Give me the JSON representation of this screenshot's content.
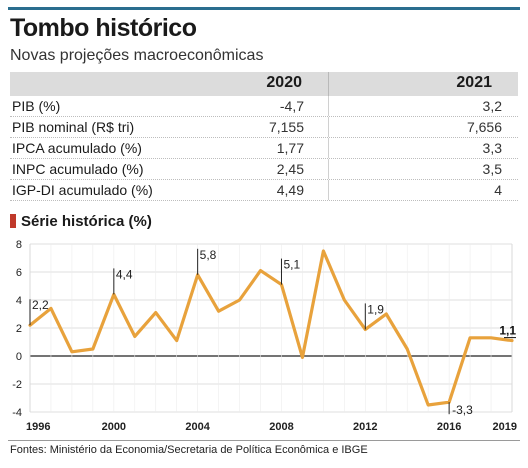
{
  "header": {
    "title": "Tombo histórico",
    "subtitle": "Novas projeções macroeconômicas"
  },
  "table": {
    "columns": [
      "2020",
      "2021"
    ],
    "rows": [
      {
        "label": "PIB (%)",
        "v2020": "-4,7",
        "v2021": "3,2"
      },
      {
        "label": "PIB nominal (R$ tri)",
        "v2020": "7,155",
        "v2021": "7,656"
      },
      {
        "label": "IPCA acumulado (%)",
        "v2020": "1,77",
        "v2021": "3,3"
      },
      {
        "label": "INPC acumulado (%)",
        "v2020": "2,45",
        "v2021": "3,5"
      },
      {
        "label": "IGP-DI acumulado (%)",
        "v2020": "4,49",
        "v2021": "4"
      }
    ]
  },
  "section_title": "Série histórica (%)",
  "source": "Fontes: Ministério da Economia/Secretaria de Política Econômica e IBGE",
  "colors": {
    "line": "#e8a23c",
    "accent": "#2a6e8f",
    "marker": "#c0392b"
  },
  "chart_data": {
    "type": "line",
    "title": "Série histórica (%)",
    "x": [
      1996,
      1997,
      1998,
      1999,
      2000,
      2001,
      2002,
      2003,
      2004,
      2005,
      2006,
      2007,
      2008,
      2009,
      2010,
      2011,
      2012,
      2013,
      2014,
      2015,
      2016,
      2017,
      2018,
      2019
    ],
    "series": [
      {
        "values": [
          2.2,
          3.4,
          0.3,
          0.5,
          4.4,
          1.4,
          3.1,
          1.1,
          5.8,
          3.2,
          4.0,
          6.1,
          5.1,
          -0.1,
          7.5,
          4.0,
          1.9,
          3.0,
          0.5,
          -3.5,
          -3.3,
          1.3,
          1.3,
          1.1
        ]
      }
    ],
    "x_ticks": [
      "1996",
      "2000",
      "2004",
      "2008",
      "2012",
      "2016",
      "2019"
    ],
    "y_ticks": [
      "8",
      "6",
      "4",
      "2",
      "0",
      "-2",
      "-4"
    ],
    "ylim": [
      -4,
      8
    ],
    "xlim": [
      1996,
      2019
    ],
    "annotations": [
      {
        "year": 1996,
        "label": "2,2"
      },
      {
        "year": 2000,
        "label": "4,4"
      },
      {
        "year": 2004,
        "label": "5,8"
      },
      {
        "year": 2008,
        "label": "5,1"
      },
      {
        "year": 2012,
        "label": "1,9"
      },
      {
        "year": 2016,
        "label": "-3,3"
      },
      {
        "year": 2019,
        "label": "1,1"
      }
    ],
    "grid": true,
    "legend": "none"
  }
}
